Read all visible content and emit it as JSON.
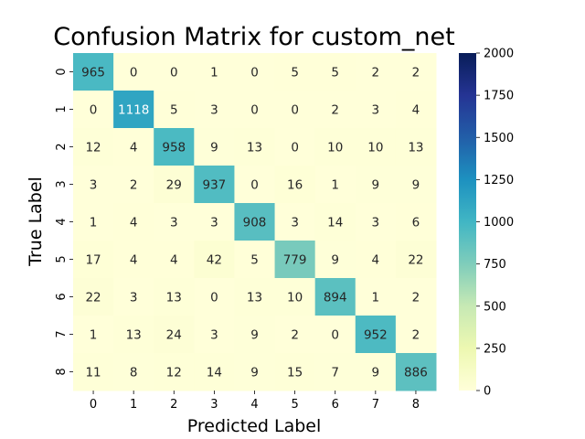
{
  "chart_data": {
    "type": "heatmap",
    "title": "Confusion Matrix for custom_net",
    "xlabel": "Predicted Label",
    "ylabel": "True Label",
    "x_categories": [
      "0",
      "1",
      "2",
      "3",
      "4",
      "5",
      "6",
      "7",
      "8"
    ],
    "y_categories": [
      "0",
      "1",
      "2",
      "3",
      "4",
      "5",
      "6",
      "7",
      "8"
    ],
    "values": [
      [
        965,
        0,
        0,
        1,
        0,
        5,
        5,
        2,
        2
      ],
      [
        0,
        1118,
        5,
        3,
        0,
        0,
        2,
        3,
        4
      ],
      [
        12,
        4,
        958,
        9,
        13,
        0,
        10,
        10,
        13
      ],
      [
        3,
        2,
        29,
        937,
        0,
        16,
        1,
        9,
        9
      ],
      [
        1,
        4,
        3,
        3,
        908,
        3,
        14,
        3,
        6
      ],
      [
        17,
        4,
        4,
        42,
        5,
        779,
        9,
        4,
        22
      ],
      [
        22,
        3,
        13,
        0,
        13,
        10,
        894,
        1,
        2
      ],
      [
        1,
        13,
        24,
        3,
        9,
        2,
        0,
        952,
        2
      ],
      [
        11,
        8,
        12,
        14,
        9,
        15,
        7,
        9,
        886
      ]
    ],
    "colormap": "YlGnBu",
    "vmin": 0,
    "vmax": 2000,
    "colorbar_ticks": [
      "0",
      "250",
      "500",
      "750",
      "1000",
      "1250",
      "1500",
      "1750",
      "2000"
    ],
    "colors": {
      "low": "#ffffd9",
      "high": "#081d58",
      "text_dark": "#262626",
      "text_light": "#ffffff"
    }
  }
}
